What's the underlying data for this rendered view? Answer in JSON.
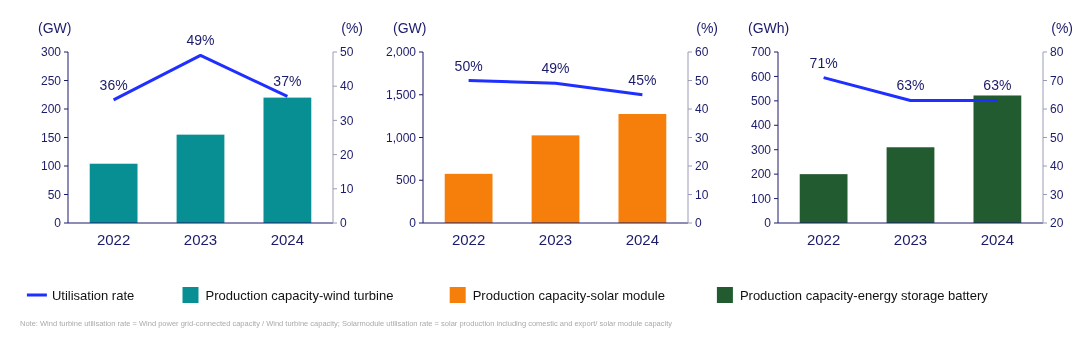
{
  "chart_data": [
    {
      "type": "bar",
      "categories": [
        "2022",
        "2023",
        "2024"
      ],
      "ylabel": "(GW)",
      "y2label": "(%)",
      "ylim": [
        0,
        300
      ],
      "yticks": [
        0,
        50,
        100,
        150,
        200,
        250,
        300
      ],
      "y2lim": [
        0,
        50
      ],
      "y2ticks": [
        0,
        10,
        20,
        30,
        40,
        50
      ],
      "legend": "bottom",
      "grid": false,
      "series": [
        {
          "name": "Production capacity-wind turbine",
          "color": "#078f94",
          "values": [
            104,
            155,
            220
          ]
        },
        {
          "name": "Utilisation rate",
          "type": "line",
          "axis": "y2",
          "color": "#1f2fff",
          "values": [
            36,
            49,
            37
          ],
          "value_labels": [
            "36%",
            "49%",
            "37%"
          ]
        }
      ],
      "annotations": [
        "Note: Wind turbine utilisation rate = Wind power grid-connected capacity / Wind turbine capacity; Solarmodule utilisation rate = solar production including comestic and export/ solar module capacity"
      ]
    },
    {
      "type": "bar",
      "categories": [
        "2022",
        "2023",
        "2024"
      ],
      "ylabel": "(GW)",
      "y2label": "(%)",
      "ylim": [
        0,
        2000
      ],
      "yticks": [
        0,
        {
          "value": 500,
          "label": "500"
        },
        {
          "value": 1000,
          "label": "1,000"
        },
        {
          "value": 1500,
          "label": "1,500"
        },
        {
          "value": 2000,
          "label": "2,000"
        }
      ],
      "y2lim": [
        0,
        60
      ],
      "y2ticks": [
        0,
        10,
        20,
        30,
        40,
        50,
        60
      ],
      "legend": "bottom",
      "grid": false,
      "series": [
        {
          "name": "Production capacity-solar module",
          "color": "#f57f0a",
          "values": [
            575,
            1025,
            1275
          ]
        },
        {
          "type": "line",
          "axis": "y2",
          "color": "#1f2fff",
          "values": [
            50,
            49,
            45
          ],
          "value_labels": [
            "50%",
            "49%",
            "45%"
          ]
        }
      ]
    },
    {
      "type": "bar",
      "categories": [
        "2022",
        "2023",
        "2024"
      ],
      "ylabel": "(GWh)",
      "y2label": "(%)",
      "ylim": [
        0,
        700
      ],
      "yticks": [
        0,
        100,
        200,
        300,
        400,
        500,
        600,
        700
      ],
      "y2lim": [
        20,
        80
      ],
      "y2ticks": [
        20,
        30,
        40,
        50,
        60,
        70,
        80
      ],
      "legend": "bottom",
      "grid": false,
      "series": [
        {
          "name": "Production capacity-energy storage battery",
          "color": "#225b30",
          "values": [
            200,
            310,
            522
          ]
        },
        {
          "type": "line",
          "axis": "y2",
          "color": "#1f2fff",
          "values": [
            71,
            63,
            63
          ],
          "value_labels": [
            "71%",
            "63%",
            "63%"
          ]
        }
      ]
    }
  ]
}
